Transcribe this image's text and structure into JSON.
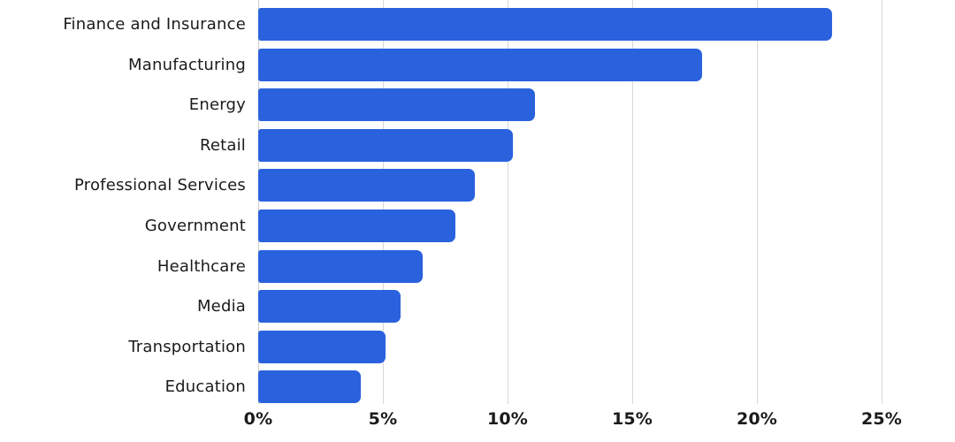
{
  "chart_data": {
    "type": "bar",
    "orientation": "horizontal",
    "title": "",
    "xlabel": "",
    "ylabel": "",
    "categories": [
      "Finance and Insurance",
      "Manufacturing",
      "Energy",
      "Retail",
      "Professional Services",
      "Government",
      "Healthcare",
      "Media",
      "Transportation",
      "Education"
    ],
    "values": [
      23,
      17.8,
      11.1,
      10.2,
      8.7,
      7.9,
      6.6,
      5.7,
      5.1,
      4.1
    ],
    "value_unit": "%",
    "xlim": [
      0,
      25
    ],
    "x_tick_values": [
      0,
      5,
      10,
      15,
      20,
      25
    ],
    "x_tick_labels": [
      "0%",
      "5%",
      "10%",
      "15%",
      "20%",
      "25%"
    ],
    "grid": "vertical",
    "legend": "none",
    "colors": {
      "bar": "#2a62dd",
      "gridline": "#d7d7d7",
      "text": "#1b1b1b",
      "background": "#ffffff"
    }
  }
}
